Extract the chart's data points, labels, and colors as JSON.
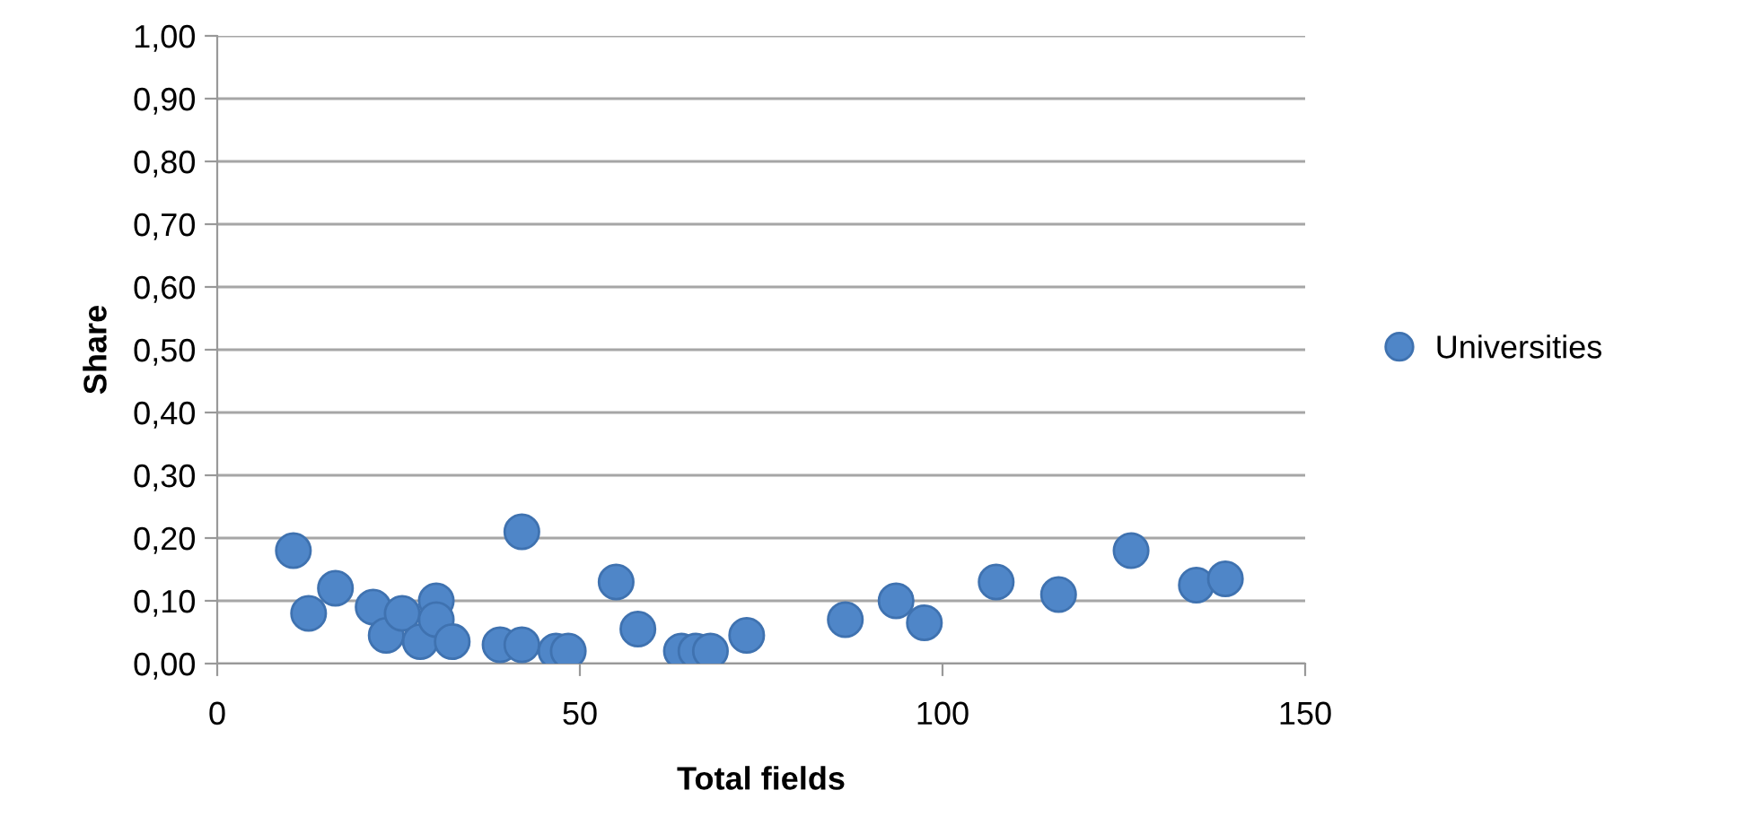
{
  "chart_data": {
    "type": "scatter",
    "xlabel": "Total fields",
    "ylabel": "Share",
    "xlim": [
      0,
      150
    ],
    "xticks": [
      0,
      50,
      100,
      150
    ],
    "ylim": [
      0,
      1
    ],
    "yticks": [
      {
        "value": 0,
        "label": "0,00"
      },
      {
        "value": 0.1,
        "label": "0,10"
      },
      {
        "value": 0.2,
        "label": "0,20"
      },
      {
        "value": 0.3,
        "label": "0,30"
      },
      {
        "value": 0.4,
        "label": "0,40"
      },
      {
        "value": 0.5,
        "label": "0,50"
      },
      {
        "value": 0.6,
        "label": "0,60"
      },
      {
        "value": 0.7,
        "label": "0,70"
      },
      {
        "value": 0.8,
        "label": "0,80"
      },
      {
        "value": 0.9,
        "label": "0,90"
      },
      {
        "value": 1,
        "label": "1,00"
      }
    ],
    "grid": "y",
    "legend": "right",
    "marker": "circle",
    "series": [
      {
        "name": "Universities",
        "color": "#4f86c8",
        "x": [
          10.5,
          12.6,
          16.3,
          21.5,
          23.3,
          25.5,
          28,
          30.2,
          30.2,
          32.4,
          39,
          42,
          42,
          46.7,
          48.4,
          55,
          58,
          64,
          66,
          68,
          73,
          86.6,
          93.6,
          97.5,
          107.4,
          116,
          126,
          135,
          139
        ],
        "values": [
          0.18,
          0.08,
          0.12,
          0.09,
          0.045,
          0.08,
          0.035,
          0.1,
          0.07,
          0.035,
          0.03,
          0.03,
          0.21,
          0.02,
          0.02,
          0.13,
          0.055,
          0.02,
          0.02,
          0.02,
          0.045,
          0.07,
          0.1,
          0.065,
          0.13,
          0.11,
          0.18,
          0.125,
          0.135
        ]
      }
    ]
  }
}
